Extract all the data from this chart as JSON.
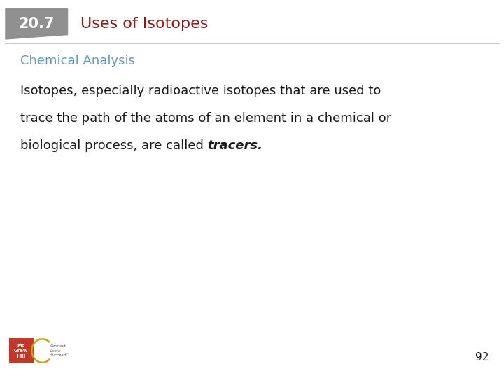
{
  "section_number": "20.7",
  "section_title": "Uses of Isotopes",
  "section_num_bg": "#909090",
  "section_num_color": "#ffffff",
  "section_title_color": "#8B1A1A",
  "subtitle": "Chemical Analysis",
  "subtitle_color": "#6699BB",
  "body_line1": "Isotopes, especially radioactive isotopes that are used to",
  "body_line2": "trace the path of the atoms of an element in a chemical or",
  "body_line3_plain": "biological process, are called ",
  "body_line3_bold": "tracers.",
  "body_text_color": "#1a1a1a",
  "body_font_size": 13,
  "subtitle_font_size": 13,
  "section_title_font_size": 16,
  "section_num_font_size": 15,
  "page_number": "92",
  "background_color": "#ffffff",
  "divider_color": "#cccccc"
}
